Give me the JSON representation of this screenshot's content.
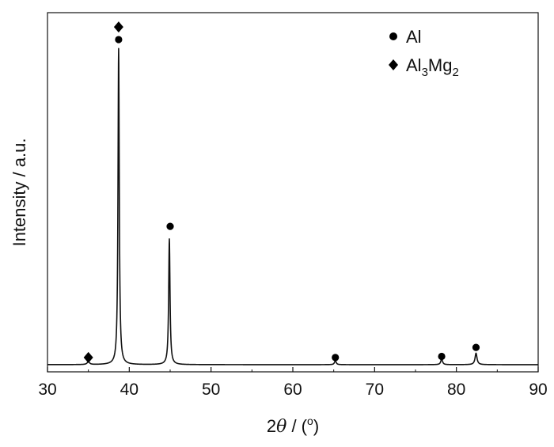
{
  "chart_data": {
    "type": "line",
    "xlabel": "2θ / (°)",
    "xlabel_parts": {
      "prefix": "2",
      "theta": "θ",
      "suffix": " / (",
      "degree": "o",
      "close": ")"
    },
    "ylabel": "Intensity / a.u.",
    "xlim": [
      30,
      90
    ],
    "ylim": [
      0,
      1.0
    ],
    "xticks": [
      30,
      40,
      50,
      60,
      70,
      80,
      90
    ],
    "grid": false,
    "legend_position": "top-right",
    "legend": [
      {
        "marker": "circle",
        "name": "Al"
      },
      {
        "marker": "diamond",
        "name_parts": [
          "Al",
          "3",
          "Mg",
          "2"
        ]
      }
    ],
    "baseline": 0.02,
    "peaks": [
      {
        "x": 35.0,
        "height": 0.008,
        "width": 0.3
      },
      {
        "x": 38.7,
        "height": 0.88,
        "width": 0.16
      },
      {
        "x": 44.9,
        "height": 0.35,
        "width": 0.17
      },
      {
        "x": 65.2,
        "height": 0.012,
        "width": 0.2
      },
      {
        "x": 78.2,
        "height": 0.016,
        "width": 0.22
      },
      {
        "x": 82.4,
        "height": 0.032,
        "width": 0.25
      }
    ],
    "markers": [
      {
        "phase": "Al3Mg2",
        "shape": "diamond",
        "x": 35.0,
        "y": 0.04
      },
      {
        "phase": "Al3Mg2",
        "shape": "diamond",
        "x": 38.7,
        "y": 0.96
      },
      {
        "phase": "Al",
        "shape": "circle",
        "x": 38.7,
        "y": 0.925
      },
      {
        "phase": "Al",
        "shape": "circle",
        "x": 45.0,
        "y": 0.405
      },
      {
        "phase": "Al",
        "shape": "circle",
        "x": 65.2,
        "y": 0.04
      },
      {
        "phase": "Al",
        "shape": "circle",
        "x": 78.2,
        "y": 0.043
      },
      {
        "phase": "Al",
        "shape": "circle",
        "x": 82.4,
        "y": 0.068
      }
    ],
    "colors": {
      "line": "#111111",
      "marker": "#000000"
    }
  }
}
